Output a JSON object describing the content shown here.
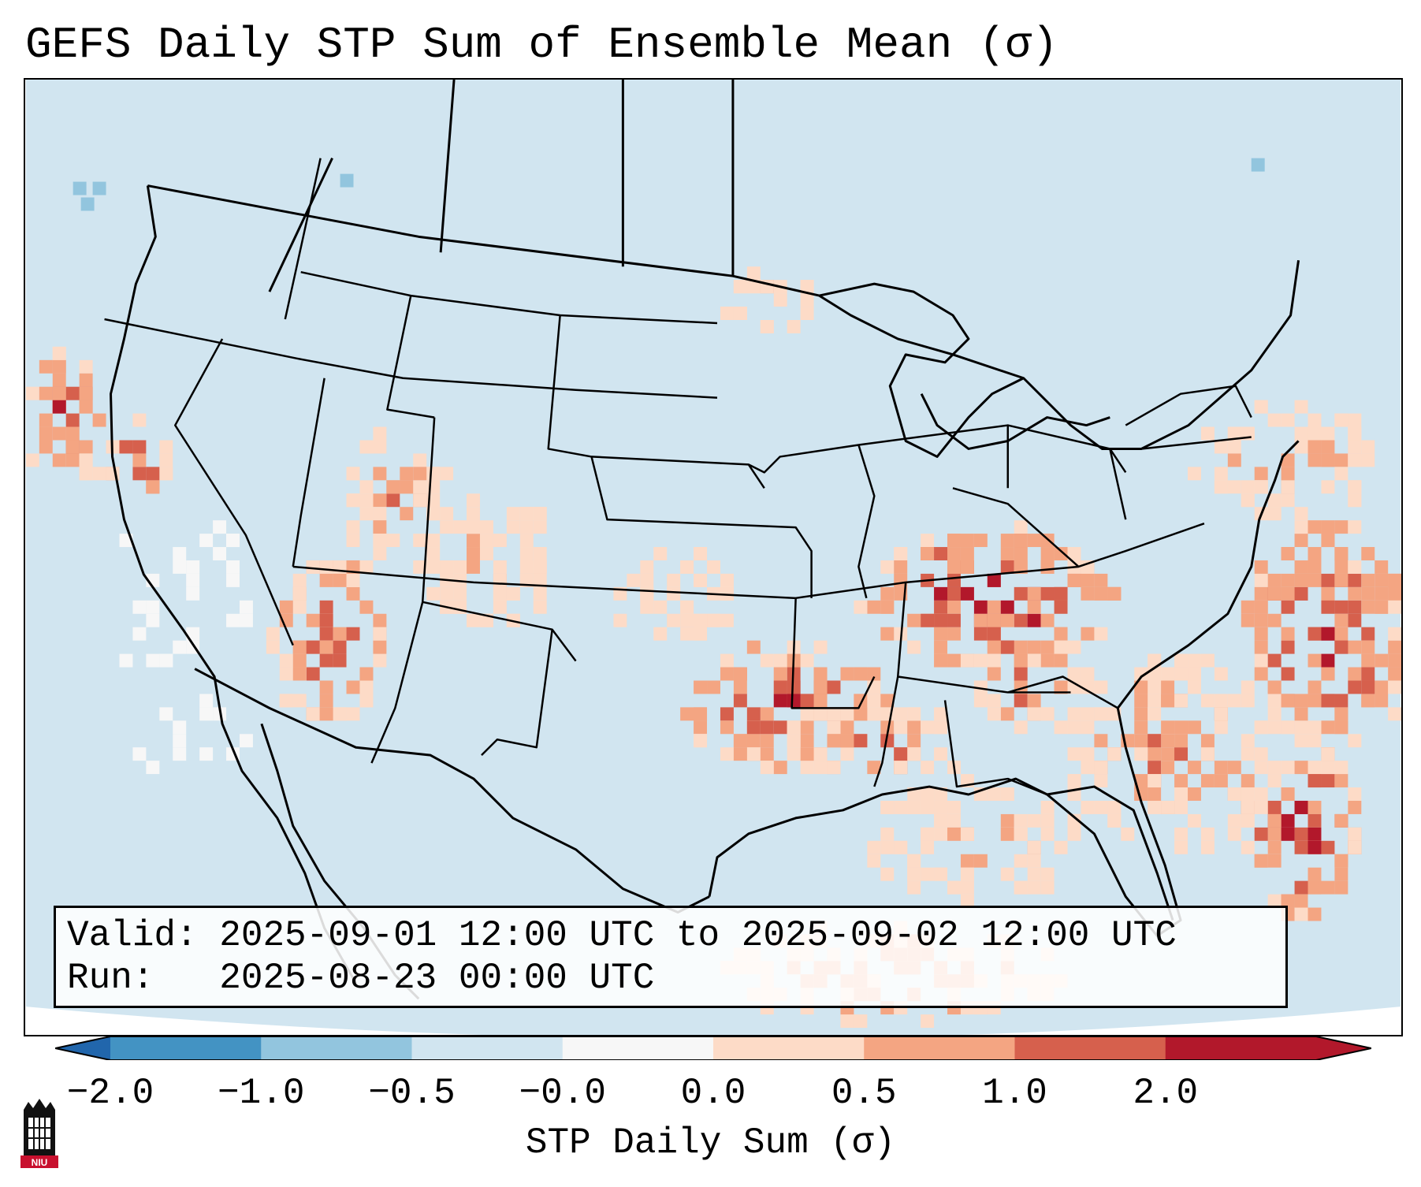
{
  "title": "GEFS Daily STP Sum of Ensemble Mean (σ)",
  "info": {
    "valid_line": "Valid: 2025-09-01 12:00 UTC to 2025-09-02 12:00 UTC",
    "run_line": "Run:   2025-08-23 00:00 UTC"
  },
  "colorbar": {
    "label": "STP Daily Sum (σ)",
    "ticks": [
      "−2.0",
      "−1.0",
      "−0.5",
      "−0.0",
      "0.0",
      "0.5",
      "1.0",
      "2.0"
    ],
    "colors": {
      "under": "#2166ac",
      "bins": [
        "#4393c3",
        "#92c5de",
        "#d1e5f0",
        "#f7f7f7",
        "#fddbc7",
        "#f4a582",
        "#d6604d",
        "#b2182b"
      ],
      "over": "#b2182b"
    }
  },
  "map": {
    "background_color": "#d1e5f0",
    "region": "Continental United States, southern Canada, northern Mexico and Gulf of Mexico",
    "hotspots": [
      {
        "region": "Ohio and Tennessee valleys",
        "level": "strong"
      },
      {
        "region": "southern Plains (Oklahoma, Arkansas, east Texas)",
        "level": "strong"
      },
      {
        "region": "western Atlantic east of Florida",
        "level": "strong"
      },
      {
        "region": "Desert Southwest (southern Nevada, Arizona)",
        "level": "moderate"
      },
      {
        "region": "California coast",
        "level": "moderate"
      }
    ]
  },
  "logo": {
    "text": "NIU"
  }
}
